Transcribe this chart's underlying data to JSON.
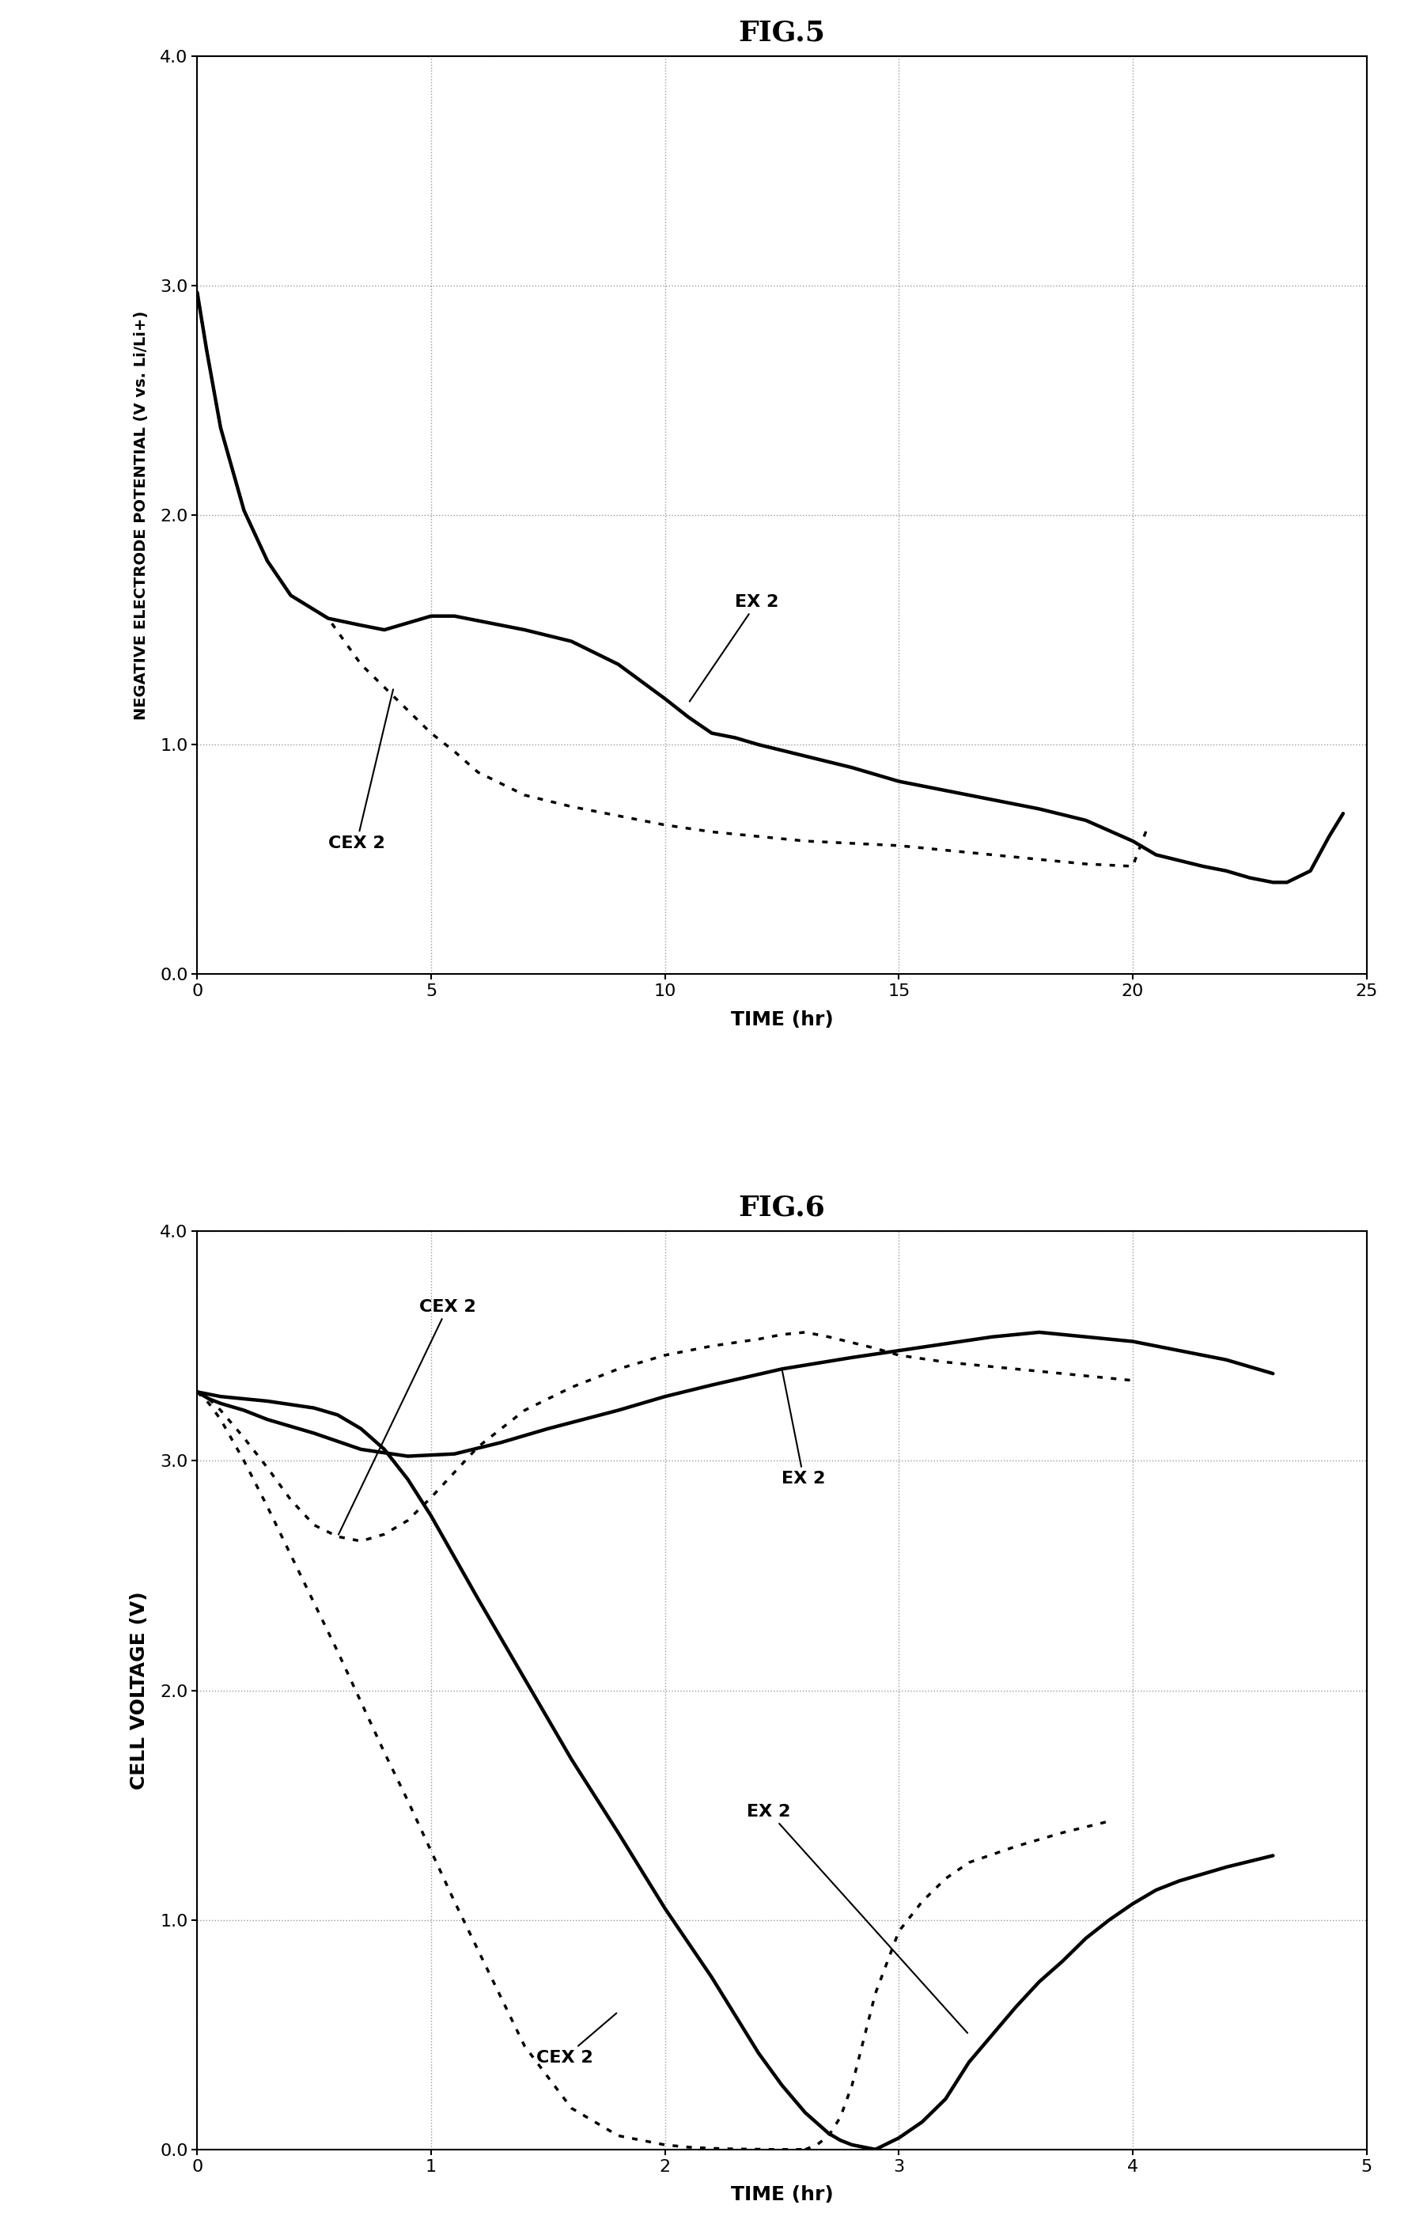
{
  "fig5_title": "FIG.5",
  "fig6_title": "FIG.6",
  "fig5_xlabel": "TIME (hr)",
  "fig5_ylabel": "NEGATIVE ELECTRODE POTENTIAL (V vs. Li/Li+)",
  "fig5_xlim": [
    0,
    25
  ],
  "fig5_ylim": [
    0.0,
    4.0
  ],
  "fig5_xticks": [
    0,
    5,
    10,
    15,
    20,
    25
  ],
  "fig5_yticks": [
    0.0,
    1.0,
    2.0,
    3.0,
    4.0
  ],
  "fig6_xlabel": "TIME (hr)",
  "fig6_ylabel": "CELL VOLTAGE (V)",
  "fig6_xlim": [
    0,
    5
  ],
  "fig6_ylim": [
    0.0,
    4.0
  ],
  "fig6_xticks": [
    0,
    1,
    2,
    3,
    4,
    5
  ],
  "fig6_yticks": [
    0.0,
    1.0,
    2.0,
    3.0,
    4.0
  ],
  "line_color": "#000000",
  "background_color": "#ffffff",
  "grid_color": "#999999",
  "fig5_ex2_label": "EX 2",
  "fig5_cex2_label": "CEX 2",
  "fig6_cex2_upper_label": "CEX 2",
  "fig6_ex2_upper_label": "EX 2",
  "fig6_ex2_lower_label": "EX 2",
  "fig6_cex2_lower_label": "CEX 2",
  "fig5_ex2_t": [
    0,
    0.2,
    0.5,
    1.0,
    1.5,
    2.0,
    2.8,
    3.5,
    4.0,
    4.5,
    5.0,
    5.5,
    6.0,
    7.0,
    8.0,
    9.0,
    10.0,
    10.5,
    11.0,
    11.5,
    12.0,
    13.0,
    14.0,
    15.0,
    16.0,
    17.0,
    18.0,
    19.0,
    20.0,
    20.5,
    21.5,
    22.0,
    22.5,
    23.0,
    23.3,
    23.8,
    24.2,
    24.5
  ],
  "fig5_ex2_v": [
    2.97,
    2.72,
    2.38,
    2.02,
    1.8,
    1.65,
    1.55,
    1.52,
    1.5,
    1.53,
    1.56,
    1.56,
    1.54,
    1.5,
    1.45,
    1.35,
    1.2,
    1.12,
    1.05,
    1.03,
    1.0,
    0.95,
    0.9,
    0.84,
    0.8,
    0.76,
    0.72,
    0.67,
    0.58,
    0.52,
    0.47,
    0.45,
    0.42,
    0.4,
    0.4,
    0.45,
    0.6,
    0.7
  ],
  "fig5_cex2_t": [
    0,
    0.2,
    0.5,
    1.0,
    1.5,
    2.0,
    2.8,
    3.5,
    4.0,
    4.5,
    5.0,
    5.5,
    6.0,
    7.0,
    8.0,
    9.0,
    10.0,
    11.0,
    12.0,
    13.0,
    14.0,
    15.0,
    16.0,
    17.0,
    18.0,
    19.0,
    20.0,
    20.3
  ],
  "fig5_cex2_v": [
    2.97,
    2.72,
    2.38,
    2.02,
    1.8,
    1.65,
    1.55,
    1.35,
    1.25,
    1.15,
    1.05,
    0.97,
    0.88,
    0.78,
    0.73,
    0.69,
    0.65,
    0.62,
    0.6,
    0.58,
    0.57,
    0.56,
    0.54,
    0.52,
    0.5,
    0.48,
    0.47,
    0.63
  ],
  "fig6_ex2_upper_t": [
    0,
    0.05,
    0.1,
    0.2,
    0.3,
    0.5,
    0.7,
    0.9,
    1.1,
    1.3,
    1.5,
    1.8,
    2.0,
    2.2,
    2.5,
    2.8,
    3.0,
    3.2,
    3.4,
    3.5,
    3.6,
    3.7,
    3.8,
    3.9,
    4.0,
    4.1,
    4.2,
    4.4,
    4.6
  ],
  "fig6_ex2_upper_v": [
    3.3,
    3.27,
    3.25,
    3.22,
    3.18,
    3.12,
    3.05,
    3.02,
    3.03,
    3.08,
    3.14,
    3.22,
    3.28,
    3.33,
    3.4,
    3.45,
    3.48,
    3.51,
    3.54,
    3.55,
    3.56,
    3.55,
    3.54,
    3.53,
    3.52,
    3.5,
    3.48,
    3.44,
    3.38
  ],
  "fig6_ex2_disc_t": [
    0,
    0.05,
    0.1,
    0.2,
    0.3,
    0.5,
    0.6,
    0.7,
    0.8,
    0.9,
    1.0,
    1.1,
    1.2,
    1.4,
    1.6,
    1.8,
    2.0,
    2.2,
    2.4,
    2.5,
    2.6,
    2.7,
    2.75,
    2.8,
    2.85,
    2.9
  ],
  "fig6_ex2_disc_v": [
    3.3,
    3.29,
    3.28,
    3.27,
    3.26,
    3.23,
    3.2,
    3.14,
    3.05,
    2.92,
    2.76,
    2.58,
    2.4,
    2.05,
    1.7,
    1.38,
    1.05,
    0.75,
    0.42,
    0.28,
    0.16,
    0.07,
    0.04,
    0.02,
    0.01,
    0.0
  ],
  "fig6_ex2_lower_t": [
    2.9,
    3.0,
    3.1,
    3.2,
    3.3,
    3.5,
    3.6,
    3.7,
    3.8,
    3.9,
    4.0,
    4.1,
    4.2,
    4.4,
    4.6
  ],
  "fig6_ex2_lower_v": [
    0.0,
    0.05,
    0.12,
    0.22,
    0.38,
    0.62,
    0.73,
    0.82,
    0.92,
    1.0,
    1.07,
    1.13,
    1.17,
    1.23,
    1.28
  ],
  "fig6_cex2_upper_t": [
    0,
    0.05,
    0.1,
    0.2,
    0.3,
    0.4,
    0.5,
    0.6,
    0.7,
    0.8,
    0.9,
    1.0,
    1.1,
    1.2,
    1.4,
    1.6,
    1.8,
    2.0,
    2.2,
    2.4,
    2.5,
    2.6,
    2.65,
    2.7,
    2.9,
    3.0,
    3.2,
    3.5,
    3.8,
    4.0
  ],
  "fig6_cex2_upper_v": [
    3.3,
    3.27,
    3.22,
    3.1,
    2.97,
    2.83,
    2.72,
    2.67,
    2.65,
    2.68,
    2.74,
    2.84,
    2.95,
    3.06,
    3.22,
    3.32,
    3.4,
    3.46,
    3.5,
    3.53,
    3.55,
    3.56,
    3.55,
    3.54,
    3.49,
    3.46,
    3.43,
    3.4,
    3.37,
    3.35
  ],
  "fig6_cex2_disc_t": [
    0,
    0.05,
    0.1,
    0.2,
    0.3,
    0.5,
    0.6,
    0.7,
    0.8,
    0.9,
    1.0,
    1.1,
    1.2,
    1.4,
    1.6,
    1.8,
    2.0,
    2.1,
    2.2,
    2.3,
    2.4,
    2.45,
    2.5,
    2.55,
    2.6
  ],
  "fig6_cex2_disc_v": [
    3.3,
    3.25,
    3.18,
    3.0,
    2.8,
    2.38,
    2.17,
    1.95,
    1.73,
    1.52,
    1.3,
    1.08,
    0.87,
    0.45,
    0.18,
    0.06,
    0.02,
    0.01,
    0.005,
    0.002,
    0.001,
    0.0,
    0.0,
    0.0,
    0.0
  ],
  "fig6_cex2_lower_t": [
    2.6,
    2.65,
    2.7,
    2.75,
    2.8,
    2.85,
    2.9,
    3.0,
    3.1,
    3.2,
    3.3,
    3.5,
    3.7,
    3.9
  ],
  "fig6_cex2_lower_v": [
    0.0,
    0.02,
    0.06,
    0.14,
    0.28,
    0.48,
    0.68,
    0.95,
    1.08,
    1.18,
    1.25,
    1.32,
    1.38,
    1.43
  ]
}
